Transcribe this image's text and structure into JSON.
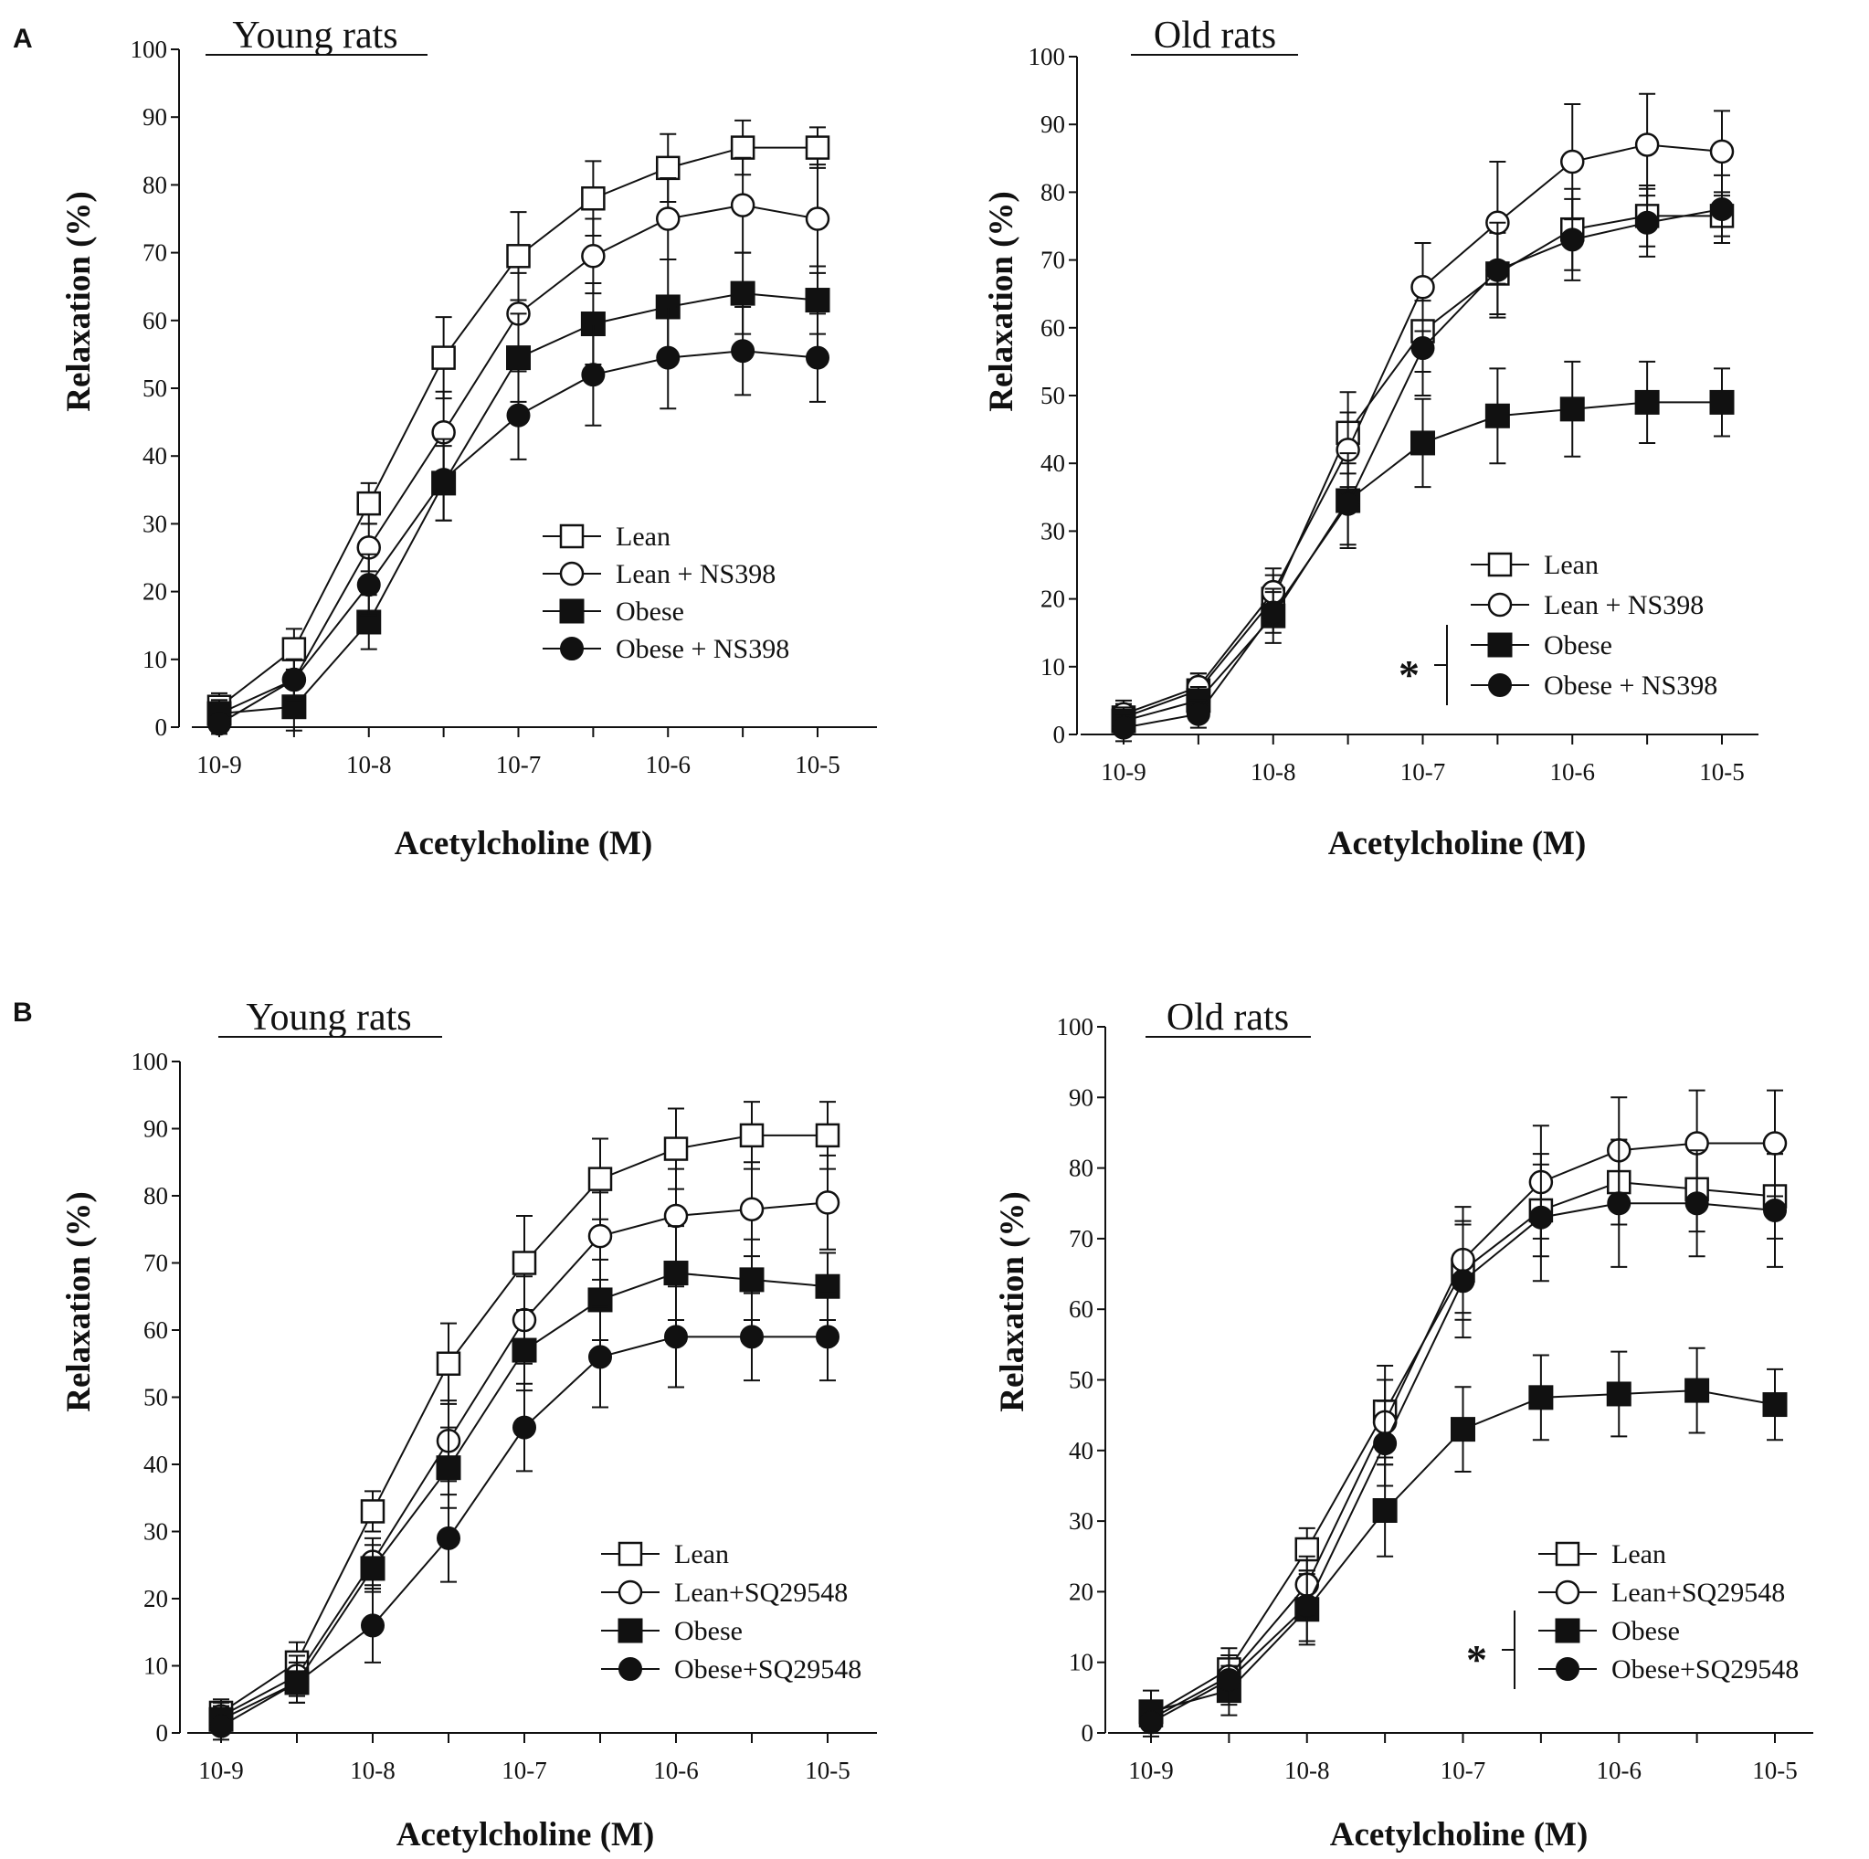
{
  "panels": [
    {
      "label": "A"
    },
    {
      "label": "B"
    }
  ],
  "chart_data": [
    {
      "type": "line",
      "title": "Young rats",
      "xlabel": "Acetylcholine (M)",
      "ylabel": "Relaxation (%)",
      "ylim": [
        0,
        100
      ],
      "yticks": [
        0,
        10,
        20,
        30,
        40,
        50,
        60,
        70,
        80,
        90,
        100
      ],
      "x_tick_labels": [
        "10-9",
        "10-8",
        "10-7",
        "10-6",
        "10-5"
      ],
      "x_log_conc": [
        -9,
        -8.5,
        -8,
        -7.5,
        -7,
        -6.5,
        -6,
        -5.5,
        -5
      ],
      "significance_marker": "",
      "series": [
        {
          "name": "Lean",
          "marker": "square-open",
          "values": [
            3,
            11.5,
            33,
            54.5,
            69.5,
            78,
            82.5,
            85.5,
            85.5
          ],
          "errors": [
            2,
            3,
            3,
            6,
            6.5,
            5.5,
            5,
            4,
            3
          ]
        },
        {
          "name": "Lean + NS398",
          "marker": "circle-open",
          "values": [
            2,
            7,
            26.5,
            43.5,
            61,
            69.5,
            75,
            77,
            75
          ],
          "errors": [
            2,
            3,
            3.5,
            6,
            6,
            5.5,
            6,
            7,
            8
          ]
        },
        {
          "name": "Obese",
          "marker": "square-filled",
          "values": [
            2,
            3,
            15.5,
            36,
            54.5,
            59.5,
            62,
            64,
            63
          ],
          "errors": [
            2,
            3.5,
            4,
            5.5,
            6.5,
            6,
            7,
            6,
            5
          ]
        },
        {
          "name": "Obese + NS398",
          "marker": "circle-filled",
          "values": [
            0.5,
            7,
            21,
            36.5,
            46,
            52,
            54.5,
            55.5,
            54.5
          ],
          "errors": [
            1.5,
            3,
            4.5,
            6,
            6.5,
            7.5,
            7.5,
            6.5,
            6.5
          ]
        }
      ]
    },
    {
      "type": "line",
      "title": "Old rats",
      "xlabel": "Acetylcholine (M)",
      "ylabel": "Relaxation (%)",
      "ylim": [
        0,
        100
      ],
      "yticks": [
        0,
        10,
        20,
        30,
        40,
        50,
        60,
        70,
        80,
        90,
        100
      ],
      "x_tick_labels": [
        "10-9",
        "10-8",
        "10-7",
        "10-6",
        "10-5"
      ],
      "x_log_conc": [
        -9,
        -8.5,
        -8,
        -7.5,
        -7,
        -6.5,
        -6,
        -5.5,
        -5
      ],
      "significance_marker": "*",
      "series": [
        {
          "name": "Lean",
          "marker": "square-open",
          "values": [
            2.5,
            6.5,
            20,
            44.5,
            59.5,
            68,
            74.5,
            76.5,
            76.5
          ],
          "errors": [
            2,
            2.5,
            3.5,
            6,
            6,
            6,
            6,
            4.5,
            3
          ]
        },
        {
          "name": "Lean + NS398",
          "marker": "circle-open",
          "values": [
            3,
            7,
            21,
            42,
            66,
            75.5,
            84.5,
            87,
            86
          ],
          "errors": [
            2,
            2,
            3.5,
            5.5,
            6.5,
            9,
            8.5,
            7.5,
            6
          ]
        },
        {
          "name": "Obese",
          "marker": "square-filled",
          "values": [
            2,
            5,
            17.5,
            34.5,
            43,
            47,
            48,
            49,
            49
          ],
          "errors": [
            2,
            2,
            4,
            7,
            6.5,
            7,
            7,
            6,
            5
          ]
        },
        {
          "name": "Obese + NS398",
          "marker": "circle-filled",
          "values": [
            1,
            3,
            18,
            34,
            57,
            68.5,
            73,
            75.5,
            77.5
          ],
          "errors": [
            2,
            2,
            3,
            6,
            7,
            7,
            6,
            5,
            5
          ]
        }
      ]
    },
    {
      "type": "line",
      "title": "Young rats",
      "xlabel": "Acetylcholine (M)",
      "ylabel": "Relaxation (%)",
      "ylim": [
        0,
        100
      ],
      "yticks": [
        0,
        10,
        20,
        30,
        40,
        50,
        60,
        70,
        80,
        90,
        100
      ],
      "x_tick_labels": [
        "10-9",
        "10-8",
        "10-7",
        "10-6",
        "10-5"
      ],
      "x_log_conc": [
        -9,
        -8.5,
        -8,
        -7.5,
        -7,
        -6.5,
        -6,
        -5.5,
        -5
      ],
      "significance_marker": "",
      "series": [
        {
          "name": "Lean",
          "marker": "square-open",
          "values": [
            3,
            10.5,
            33,
            55,
            70,
            82.5,
            87,
            89,
            89
          ],
          "errors": [
            2,
            3,
            3,
            6,
            7,
            6,
            6,
            5,
            5
          ]
        },
        {
          "name": "Lean+SQ29548",
          "marker": "circle-open",
          "values": [
            2.5,
            8.5,
            25.5,
            43.5,
            61.5,
            74,
            77,
            78,
            79
          ],
          "errors": [
            2,
            3,
            3.5,
            6,
            6.5,
            6.5,
            7,
            7,
            7
          ]
        },
        {
          "name": "Obese",
          "marker": "square-filled",
          "values": [
            2,
            7.5,
            24.5,
            39.5,
            57,
            64.5,
            68.5,
            67.5,
            66.5
          ],
          "errors": [
            2,
            3,
            3.5,
            6,
            6,
            6,
            7,
            6,
            5
          ]
        },
        {
          "name": "Obese+SQ29548",
          "marker": "circle-filled",
          "values": [
            1,
            7.5,
            16,
            29,
            45.5,
            56,
            59,
            59,
            59
          ],
          "errors": [
            2,
            3,
            5.5,
            6.5,
            6.5,
            7.5,
            7.5,
            6.5,
            6.5
          ]
        }
      ]
    },
    {
      "type": "line",
      "title": "Old rats",
      "xlabel": "Acetylcholine (M)",
      "ylabel": "Relaxation (%)",
      "ylim": [
        0,
        100
      ],
      "yticks": [
        0,
        10,
        20,
        30,
        40,
        50,
        60,
        70,
        80,
        90,
        100
      ],
      "x_tick_labels": [
        "10-9",
        "10-8",
        "10-7",
        "10-6",
        "10-5"
      ],
      "x_log_conc": [
        -9,
        -8.5,
        -8,
        -7.5,
        -7,
        -6.5,
        -6,
        -5.5,
        -5
      ],
      "significance_marker": "*",
      "series": [
        {
          "name": "Lean",
          "marker": "square-open",
          "values": [
            2.5,
            9,
            26,
            45.5,
            65.5,
            74,
            78,
            77,
            76
          ],
          "errors": [
            2,
            3,
            3,
            6.5,
            7,
            6.5,
            6,
            6,
            6
          ]
        },
        {
          "name": "Lean+SQ29548",
          "marker": "circle-open",
          "values": [
            2,
            8,
            21,
            44,
            67,
            78,
            82.5,
            83.5,
            83.5
          ],
          "errors": [
            2,
            3,
            4,
            6,
            7.5,
            8,
            7.5,
            7.5,
            7.5
          ]
        },
        {
          "name": "Obese",
          "marker": "square-filled",
          "values": [
            3,
            6,
            17.5,
            31.5,
            43,
            47.5,
            48,
            48.5,
            46.5
          ],
          "errors": [
            3,
            3.5,
            5,
            6.5,
            6,
            6,
            6,
            6,
            5
          ]
        },
        {
          "name": "Obese+SQ29548",
          "marker": "circle-filled",
          "values": [
            1.5,
            7.5,
            18,
            41,
            64,
            73,
            75,
            75,
            74
          ],
          "errors": [
            2,
            3.5,
            5,
            6,
            8,
            9,
            9,
            7.5,
            8
          ]
        }
      ]
    }
  ]
}
